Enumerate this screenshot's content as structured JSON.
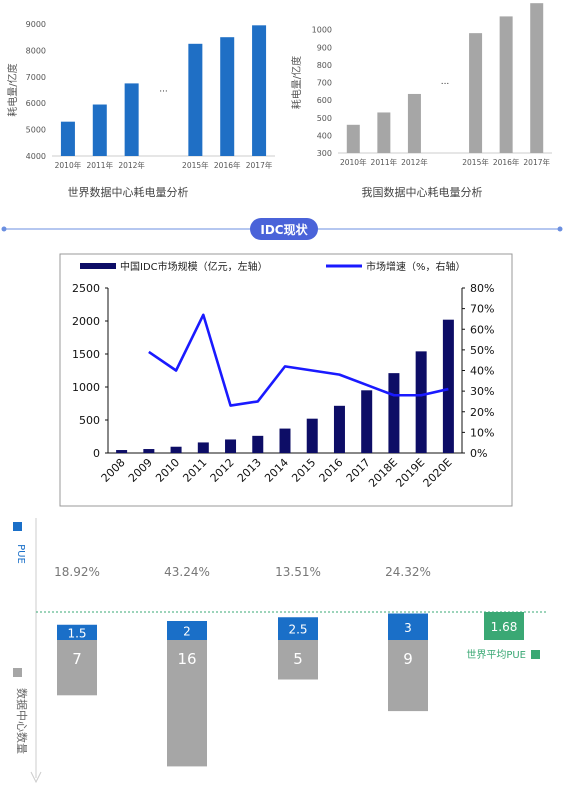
{
  "chart_data": [
    {
      "type": "bar",
      "title": "世界数据中心耗电量分析",
      "ylabel": "耗电量/亿度",
      "categories": [
        "2010年",
        "2011年",
        "2012年",
        "",
        "2015年",
        "2016年",
        "2017年"
      ],
      "gap_marker": "···",
      "values": [
        5300,
        5950,
        6750,
        null,
        8250,
        8500,
        8950
      ],
      "ylim": [
        4000,
        9000
      ],
      "yticks": [
        4000,
        5000,
        6000,
        7000,
        8000,
        9000
      ],
      "color": "#1f6fc5"
    },
    {
      "type": "bar",
      "title": "我国数据中心耗电量分析",
      "ylabel": "耗电量/亿度",
      "categories": [
        "2010年",
        "2011年",
        "2012年",
        "",
        "2015年",
        "2016年",
        "2017年"
      ],
      "gap_marker": "···",
      "values": [
        460,
        530,
        635,
        null,
        980,
        1075,
        1150
      ],
      "ylim": [
        300,
        1100
      ],
      "yticks": [
        300,
        400,
        500,
        600,
        700,
        800,
        900,
        1000
      ],
      "color": "#a6a6a6"
    },
    {
      "type": "bar+line",
      "legend": [
        "中国IDC市场规模（亿元，左轴）",
        "市场增速（%，右轴）"
      ],
      "categories": [
        "2008",
        "2009",
        "2010",
        "2011",
        "2012",
        "2013",
        "2014",
        "2015",
        "2016",
        "2017",
        "2018E",
        "2019E",
        "2020E"
      ],
      "bar_values": [
        45,
        60,
        95,
        160,
        205,
        260,
        370,
        520,
        715,
        950,
        1210,
        1540,
        2020
      ],
      "line_values": [
        null,
        49,
        40,
        67,
        23,
        25,
        42,
        40,
        38,
        33,
        28,
        28,
        31
      ],
      "y_left": [
        0,
        2500
      ],
      "y_left_ticks": [
        0,
        500,
        1000,
        1500,
        2000,
        2500
      ],
      "y_right": [
        0,
        80
      ],
      "y_right_ticks": [
        "0%",
        "10%",
        "20%",
        "30%",
        "40%",
        "50%",
        "60%",
        "70%",
        "80%"
      ],
      "bar_color": "#0d0d66",
      "line_color": "#1a1aff"
    },
    {
      "type": "bar",
      "pue_label": "PUE",
      "count_label": "数据中心数量",
      "percentages": [
        "18.92%",
        "43.24%",
        "13.51%",
        "24.32%"
      ],
      "pue_values": [
        "1.5",
        "2",
        "2.5",
        "3"
      ],
      "count_values": [
        "7",
        "16",
        "5",
        "9"
      ],
      "counts_numeric": [
        7,
        16,
        5,
        9
      ],
      "pue_numeric": [
        1.5,
        2,
        2.5,
        3
      ],
      "world_pue_value": "1.68",
      "world_pue_label": "世界平均PUE",
      "pue_color": "#1a6fc8",
      "count_color": "#a6a6a6",
      "world_color": "#3aa874"
    }
  ],
  "section": {
    "badge": "IDC现状"
  }
}
